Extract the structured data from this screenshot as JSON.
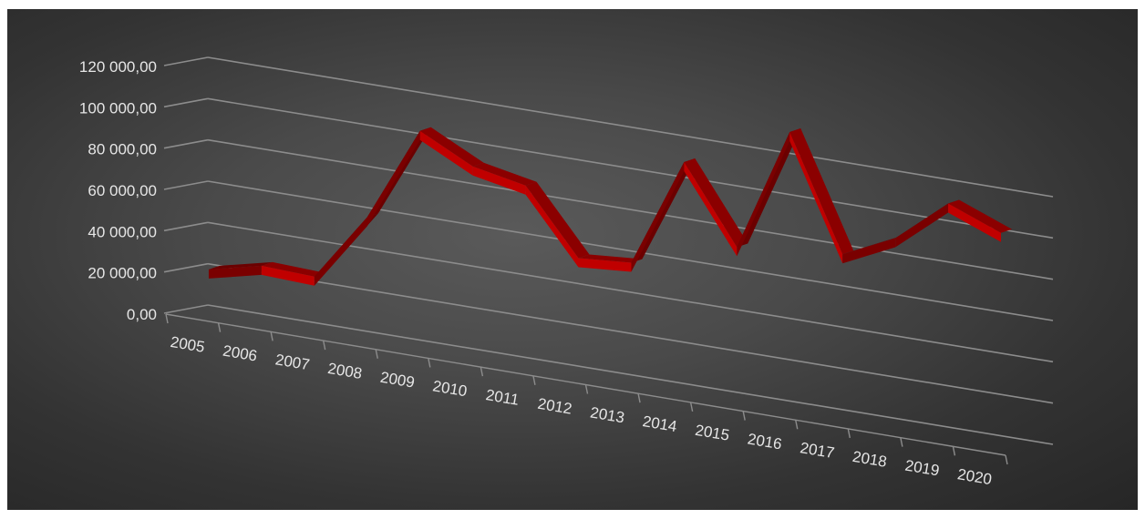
{
  "chart_data": {
    "type": "line",
    "title": "",
    "xlabel": "",
    "ylabel": "",
    "ylim": [
      0,
      120000
    ],
    "yticks": [
      "0,00",
      "20 000,00",
      "40 000,00",
      "60 000,00",
      "80 000,00",
      "100 000,00",
      "120 000,00"
    ],
    "categories": [
      "2005",
      "2006",
      "2007",
      "2008",
      "2009",
      "2010",
      "2011",
      "2012",
      "2013",
      "2014",
      "2015",
      "2016",
      "2017",
      "2018",
      "2019",
      "2020"
    ],
    "series": [
      {
        "values": [
          22000,
          28000,
          27000,
          60000,
          106000,
          93000,
          88000,
          57000,
          59000,
          112000,
          75000,
          135000,
          80000,
          92000,
          113000,
          103000
        ]
      }
    ],
    "grid": true,
    "legend": "none",
    "colors": {
      "ribbon_front": "#c00000",
      "ribbon_side": "#6b0000",
      "ribbon_top": "#8b0000",
      "background": "#404040",
      "gridline": "#8c8c8c",
      "text": "#e6e6e6"
    }
  }
}
